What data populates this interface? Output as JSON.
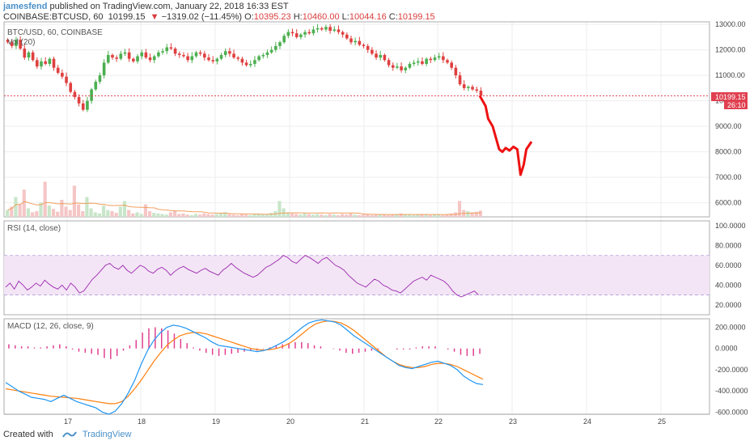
{
  "header": {
    "author": "jamesfend",
    "published": "published on TradingView.com, January 22, 2018 16:33 EST",
    "symbol": "COINBASE:BTCUSD, 60",
    "price": "10199.15",
    "change_arrow": "▼",
    "change": "−1319.02 (−11.45%)",
    "ohlc": [
      {
        "k": "O:",
        "v": "10395.23"
      },
      {
        "k": "H:",
        "v": "10460.00"
      },
      {
        "k": "L:",
        "v": "10044.16"
      },
      {
        "k": "C:",
        "v": "10199.15"
      }
    ]
  },
  "colors": {
    "up": "#4caf50",
    "down": "#e04040",
    "rsi": "#9c27b0",
    "macd": "#2196f3",
    "signal": "#ff7f0e",
    "hist": "#e04090",
    "drawing": "#ee1111",
    "price_label": "#e04050"
  },
  "footer": {
    "created_with": "Created with",
    "brand": "TradingView"
  },
  "chart_data": [
    {
      "type": "candlestick",
      "title": "BTC/USD, 60, COINBASE",
      "overlay_label": "Vol (20)",
      "y_ticks": [
        "13000.00",
        "12000.00",
        "11000.00",
        "10000.00",
        "9000.00",
        "8000.00",
        "7000.00",
        "6000.00"
      ],
      "x_ticks": [
        "17",
        "18",
        "19",
        "20",
        "21",
        "22",
        "23",
        "24",
        "25"
      ],
      "last_price": "10199.15",
      "countdown": "26:10",
      "ylim": [
        5500,
        13000
      ],
      "close_series": [
        12300,
        12150,
        12400,
        12050,
        11700,
        11900,
        11600,
        11350,
        11550,
        11450,
        11650,
        11300,
        11100,
        10950,
        10700,
        10350,
        10150,
        9900,
        9650,
        10000,
        10450,
        10750,
        11000,
        11500,
        11800,
        11700,
        11650,
        11850,
        11900,
        11650,
        11550,
        11750,
        11900,
        11700,
        11600,
        11750,
        11900,
        11950,
        12100,
        12050,
        11850,
        11800,
        11750,
        11600,
        11750,
        11900,
        11850,
        11700,
        11600,
        11550,
        11650,
        11800,
        11950,
        11850,
        11700,
        11650,
        11500,
        11400,
        11450,
        11600,
        11750,
        11800,
        11900,
        12000,
        12150,
        12300,
        12550,
        12700,
        12650,
        12500,
        12600,
        12700,
        12650,
        12800,
        12850,
        12800,
        12900,
        12750,
        12800,
        12700,
        12600,
        12450,
        12300,
        12350,
        12200,
        12150,
        12000,
        11850,
        11700,
        11800,
        11600,
        11400,
        11300,
        11350,
        11200,
        11300,
        11450,
        11500,
        11550,
        11450,
        11650,
        11600,
        11700,
        11750,
        11600,
        11500,
        11300,
        11000,
        10650,
        10500,
        10550,
        10450,
        10400,
        10199
      ],
      "volume": [
        0.12,
        0.18,
        0.35,
        0.22,
        0.48,
        0.15,
        0.08,
        0.1,
        0.25,
        0.62,
        0.2,
        0.14,
        0.09,
        0.3,
        0.18,
        0.12,
        0.55,
        0.22,
        0.1,
        0.35,
        0.15,
        0.08,
        0.06,
        0.2,
        0.12,
        0.1,
        0.07,
        0.18,
        0.28,
        0.12,
        0.06,
        0.08,
        0.05,
        0.22,
        0.1,
        0.07,
        0.06,
        0.05,
        0.04,
        0.08,
        0.1,
        0.05,
        0.06,
        0.04,
        0.03,
        0.05,
        0.04,
        0.06,
        0.05,
        0.04,
        0.05,
        0.06,
        0.08,
        0.05,
        0.04,
        0.03,
        0.05,
        0.04,
        0.03,
        0.05,
        0.06,
        0.04,
        0.05,
        0.07,
        0.1,
        0.28,
        0.15,
        0.08,
        0.06,
        0.05,
        0.04,
        0.06,
        0.05,
        0.04,
        0.05,
        0.04,
        0.03,
        0.05,
        0.04,
        0.03,
        0.05,
        0.04,
        0.06,
        0.04,
        0.03,
        0.04,
        0.05,
        0.03,
        0.04,
        0.05,
        0.04,
        0.03,
        0.04,
        0.05,
        0.06,
        0.04,
        0.05,
        0.03,
        0.04,
        0.05,
        0.04,
        0.03,
        0.05,
        0.04,
        0.03,
        0.05,
        0.06,
        0.08,
        0.28,
        0.12,
        0.1,
        0.08,
        0.09,
        0.11
      ],
      "projection": [
        [
          10199,
          0
        ],
        [
          9800,
          0.9
        ],
        [
          9300,
          1.3
        ],
        [
          9000,
          2.0
        ],
        [
          8100,
          3.0
        ],
        [
          8000,
          3.5
        ],
        [
          8150,
          4.0
        ],
        [
          8050,
          4.6
        ],
        [
          8200,
          5.2
        ],
        [
          8100,
          5.8
        ],
        [
          7100,
          6.3
        ],
        [
          7500,
          6.8
        ],
        [
          8100,
          7.2
        ],
        [
          8400,
          8.0
        ]
      ]
    },
    {
      "type": "line",
      "title": "RSI (14, close)",
      "y_ticks": [
        "100.0000",
        "80.0000",
        "60.0000",
        "40.0000",
        "20.0000"
      ],
      "ylim": [
        10,
        105
      ],
      "band": [
        30,
        70
      ],
      "values": [
        38,
        42,
        36,
        44,
        40,
        35,
        38,
        42,
        39,
        45,
        41,
        38,
        36,
        40,
        35,
        42,
        38,
        32,
        34,
        40,
        46,
        50,
        55,
        60,
        62,
        58,
        56,
        60,
        55,
        52,
        56,
        60,
        58,
        54,
        52,
        56,
        58,
        55,
        50,
        54,
        57,
        59,
        56,
        54,
        52,
        55,
        57,
        54,
        52,
        50,
        55,
        58,
        62,
        58,
        55,
        52,
        50,
        48,
        50,
        54,
        58,
        60,
        63,
        66,
        70,
        68,
        64,
        62,
        66,
        70,
        68,
        65,
        62,
        66,
        68,
        64,
        60,
        58,
        55,
        50,
        46,
        42,
        40,
        38,
        42,
        46,
        44,
        40,
        38,
        35,
        34,
        32,
        36,
        40,
        44,
        46,
        48,
        45,
        50,
        48,
        46,
        44,
        40,
        34,
        30,
        28,
        30,
        32,
        34,
        30
      ],
      "series": [
        {
          "values": []
        }
      ]
    },
    {
      "type": "line+bar",
      "title": "MACD (12, 26, close, 9)",
      "y_ticks": [
        "200.0000",
        "0.0000",
        "-200.0000",
        "-400.0000",
        "-600.0000"
      ],
      "ylim": [
        -620,
        280
      ],
      "macd": [
        -320,
        -360,
        -400,
        -430,
        -460,
        -470,
        -480,
        -500,
        -470,
        -440,
        -470,
        -500,
        -520,
        -540,
        -560,
        -600,
        -620,
        -590,
        -520,
        -420,
        -300,
        -150,
        -20,
        80,
        150,
        200,
        220,
        210,
        190,
        160,
        130,
        100,
        60,
        30,
        20,
        10,
        0,
        -10,
        -20,
        -30,
        -20,
        0,
        30,
        60,
        100,
        150,
        200,
        240,
        260,
        270,
        260,
        250,
        220,
        170,
        120,
        80,
        40,
        0,
        -40,
        -80,
        -120,
        -160,
        -180,
        -190,
        -170,
        -150,
        -130,
        -120,
        -140,
        -160,
        -200,
        -260,
        -300,
        -330,
        -340
      ],
      "signal": [
        -380,
        -390,
        -400,
        -410,
        -420,
        -430,
        -440,
        -450,
        -455,
        -460,
        -465,
        -470,
        -480,
        -490,
        -500,
        -510,
        -520,
        -520,
        -500,
        -450,
        -380,
        -300,
        -210,
        -120,
        -40,
        30,
        80,
        120,
        140,
        150,
        150,
        140,
        120,
        100,
        80,
        60,
        40,
        20,
        0,
        -10,
        -15,
        -10,
        0,
        20,
        50,
        90,
        140,
        190,
        230,
        250,
        260,
        255,
        240,
        210,
        170,
        120,
        70,
        20,
        -30,
        -80,
        -120,
        -150,
        -170,
        -180,
        -180,
        -170,
        -150,
        -140,
        -140,
        -150,
        -170,
        -200,
        -230,
        -260,
        -290
      ],
      "hist": [
        40,
        30,
        20,
        20,
        10,
        10,
        20,
        30,
        40,
        20,
        -10,
        -30,
        -40,
        -50,
        -60,
        -90,
        -100,
        -70,
        -20,
        30,
        80,
        150,
        190,
        200,
        190,
        170,
        140,
        90,
        50,
        10,
        -20,
        -40,
        -60,
        -70,
        -60,
        -50,
        -40,
        -30,
        -20,
        -20,
        -5,
        10,
        30,
        40,
        50,
        60,
        60,
        50,
        30,
        20,
        0,
        -5,
        -20,
        -40,
        -50,
        -40,
        -30,
        -20,
        -10,
        0,
        0,
        -10,
        -10,
        -10,
        10,
        20,
        20,
        20,
        0,
        -10,
        -30,
        -60,
        -70,
        -70,
        -50
      ]
    }
  ]
}
